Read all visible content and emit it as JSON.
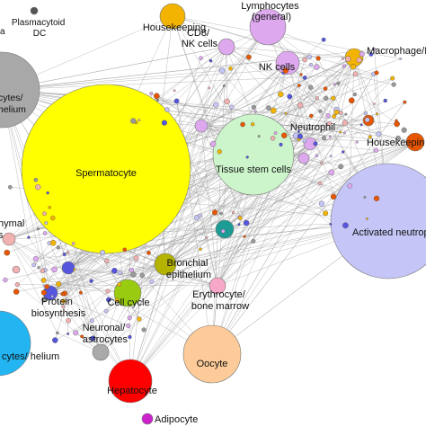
{
  "diagram": {
    "clusters": [
      {
        "id": "spermatocyte",
        "label": "Spermatocyte",
        "color": "#ffff00"
      },
      {
        "id": "tissue_stem",
        "label": "Tissue stem cells",
        "color": "#ccf5cc"
      },
      {
        "id": "activated_neutro",
        "label": "Activated neutrop",
        "color": "#c5c5f7"
      },
      {
        "id": "oocyte",
        "label": "Oocyte",
        "color": "#fccb99"
      },
      {
        "id": "hepatocyte",
        "label": "Hepatocyte",
        "color": "#ff0000"
      },
      {
        "id": "cell_cycle",
        "label": "Cell cycle",
        "color": "#99cc11"
      },
      {
        "id": "bronchial",
        "label": "Bronchial epithelium",
        "color": "#b3b300"
      },
      {
        "id": "erythrocyte",
        "label": "Erythrocyte/ bone marrow",
        "color": "#f7a8c8"
      },
      {
        "id": "protein_bio",
        "label": "Protein biosynthesis",
        "color": "#5555dd"
      },
      {
        "id": "neuronal",
        "label": "Neuronal/ astrocytes",
        "color": "#aaaaaa"
      },
      {
        "id": "adipocyte",
        "label": "Adipocyte",
        "color": "#cc22cc"
      },
      {
        "id": "housekeeping_top",
        "label": "Housekeeping",
        "color": "#f2b400"
      },
      {
        "id": "housekeeping_right",
        "label": "Housekeepin",
        "color": "#e85500"
      },
      {
        "id": "lymphocytes",
        "label": "Lymphocytes (general)",
        "color": "#dda8ee"
      },
      {
        "id": "cd8_nk",
        "label": "CD8/ NK cells",
        "color": "#dda8ee"
      },
      {
        "id": "nk",
        "label": "NK cells",
        "color": "#dda8ee"
      },
      {
        "id": "neutrophil",
        "label": "Neutrophil",
        "color": "#dda8ee"
      },
      {
        "id": "macrophage",
        "label": "Macrophage/M",
        "color": "#f2b400"
      },
      {
        "id": "plasmacytoid",
        "label": "Plasmacytoid DC",
        "color": "#555555"
      },
      {
        "id": "top_left_partial",
        "label": "a",
        "color": "#555555"
      },
      {
        "id": "grey_left",
        "label": "cytes/ helium",
        "color": "#a8a8a8"
      },
      {
        "id": "blue_left",
        "label": "S",
        "color": "#22b5f2"
      },
      {
        "id": "mesenchymal",
        "label": "hymal s",
        "color": "#f2b0b0"
      },
      {
        "id": "teal_node",
        "label": "",
        "color": "#1c9c94"
      }
    ]
  }
}
